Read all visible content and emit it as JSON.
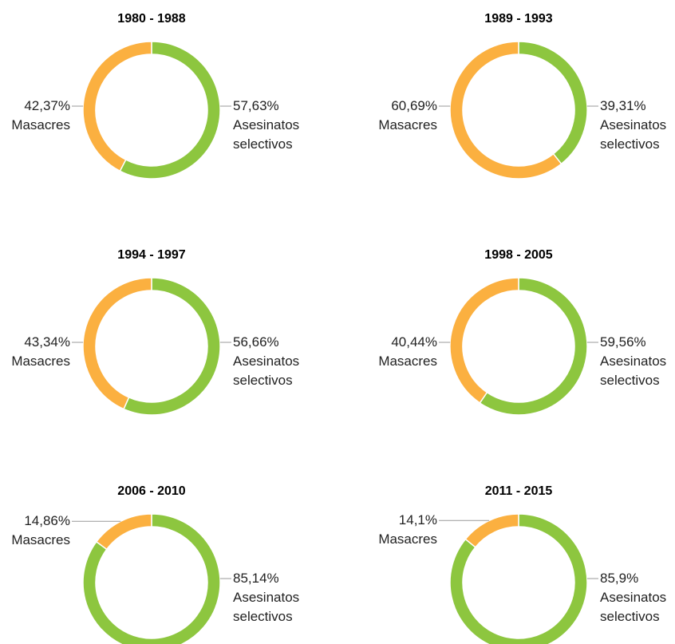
{
  "chart_data": [
    {
      "type": "pie",
      "title": "1980 - 1988",
      "categories": [
        "Asesinatos selectivos",
        "Masacres"
      ],
      "values": [
        57.63,
        42.37
      ],
      "value_labels": [
        "57,63%",
        "42,37%"
      ],
      "colors": [
        "#8dc63f",
        "#fbb040"
      ]
    },
    {
      "type": "pie",
      "title": "1989 - 1993",
      "categories": [
        "Asesinatos selectivos",
        "Masacres"
      ],
      "values": [
        39.31,
        60.69
      ],
      "value_labels": [
        "39,31%",
        "60,69%"
      ],
      "colors": [
        "#8dc63f",
        "#fbb040"
      ]
    },
    {
      "type": "pie",
      "title": "1994 - 1997",
      "categories": [
        "Asesinatos selectivos",
        "Masacres"
      ],
      "values": [
        56.66,
        43.34
      ],
      "value_labels": [
        "56,66%",
        "43,34%"
      ],
      "colors": [
        "#8dc63f",
        "#fbb040"
      ]
    },
    {
      "type": "pie",
      "title": "1998 - 2005",
      "categories": [
        "Asesinatos selectivos",
        "Masacres"
      ],
      "values": [
        59.56,
        40.44
      ],
      "value_labels": [
        "59,56%",
        "40,44%"
      ],
      "colors": [
        "#8dc63f",
        "#fbb040"
      ]
    },
    {
      "type": "pie",
      "title": "2006 - 2010",
      "categories": [
        "Asesinatos selectivos",
        "Masacres"
      ],
      "values": [
        85.14,
        14.86
      ],
      "value_labels": [
        "85,14%",
        "14,86%"
      ],
      "colors": [
        "#8dc63f",
        "#fbb040"
      ]
    },
    {
      "type": "pie",
      "title": "2011 - 2015",
      "categories": [
        "Asesinatos selectivos",
        "Masacres"
      ],
      "values": [
        85.9,
        14.1
      ],
      "value_labels": [
        "85,9%",
        "14,1%"
      ],
      "colors": [
        "#8dc63f",
        "#fbb040"
      ]
    }
  ]
}
